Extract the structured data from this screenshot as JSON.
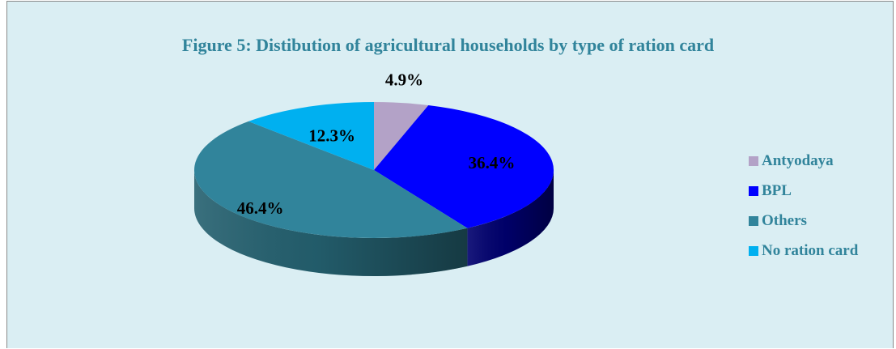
{
  "chart_data": {
    "type": "pie",
    "title": "Figure 5: Distibution of agricultural households by type of ration card",
    "categories": [
      "Antyodaya",
      "BPL",
      "Others",
      "No ration card"
    ],
    "values": [
      4.9,
      36.4,
      46.4,
      12.3
    ],
    "value_labels": [
      "4.9%",
      "36.4%",
      "46.4%",
      "12.3%"
    ],
    "colors": [
      "#b3a2c7",
      "#0000ff",
      "#31849b",
      "#00b0f0"
    ],
    "side_colors": [
      "#8a7aa0",
      "#00006e",
      "#24606f",
      "#0088ba"
    ],
    "style": "3d",
    "legend_position": "right"
  }
}
